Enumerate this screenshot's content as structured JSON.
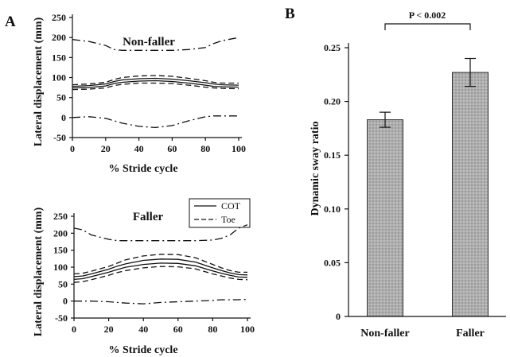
{
  "panel_a_label": "A",
  "panel_b_label": "B",
  "legend": {
    "items": [
      {
        "label": "COT",
        "dash": "solid"
      },
      {
        "label": "Toe",
        "dash": "dashed"
      }
    ]
  },
  "chart_data": [
    {
      "type": "line",
      "title": "Non-faller",
      "xlabel": "% Stride cycle",
      "ylabel": "Lateral displacement (mm)",
      "xlim": [
        0,
        100
      ],
      "ylim": [
        -50,
        250
      ],
      "xticks": [
        0,
        20,
        40,
        60,
        80,
        100
      ],
      "yticks": [
        -50,
        0,
        50,
        100,
        150,
        200,
        250
      ],
      "x": [
        0,
        10,
        20,
        25,
        30,
        40,
        50,
        60,
        70,
        80,
        85,
        90,
        100
      ],
      "series": [
        {
          "style": "dashdot",
          "values": [
            195,
            190,
            180,
            170,
            168,
            168,
            168,
            168,
            170,
            175,
            185,
            192,
            200
          ]
        },
        {
          "style": "dashed",
          "values": [
            82,
            84,
            88,
            95,
            100,
            104,
            105,
            103,
            98,
            92,
            88,
            86,
            86
          ]
        },
        {
          "style": "solid",
          "values": [
            78,
            80,
            84,
            90,
            94,
            97,
            98,
            96,
            92,
            87,
            84,
            82,
            81
          ]
        },
        {
          "style": "solid",
          "values": [
            74,
            75,
            79,
            85,
            88,
            91,
            92,
            90,
            86,
            81,
            78,
            77,
            76
          ]
        },
        {
          "style": "dashed",
          "values": [
            70,
            71,
            74,
            80,
            83,
            86,
            86,
            85,
            81,
            76,
            74,
            73,
            72
          ]
        },
        {
          "style": "dashdot",
          "values": [
            0,
            2,
            -2,
            -8,
            -14,
            -22,
            -25,
            -20,
            -8,
            2,
            4,
            4,
            4
          ]
        }
      ]
    },
    {
      "type": "line",
      "title": "Faller",
      "xlabel": "% Stride cycle",
      "ylabel": "Lateral displacement (mm)",
      "xlim": [
        0,
        100
      ],
      "ylim": [
        -50,
        250
      ],
      "xticks": [
        0,
        20,
        40,
        60,
        80,
        100
      ],
      "yticks": [
        -50,
        0,
        50,
        100,
        150,
        200,
        250
      ],
      "x": [
        0,
        5,
        10,
        20,
        25,
        30,
        40,
        50,
        60,
        70,
        80,
        85,
        90,
        95,
        100
      ],
      "series": [
        {
          "style": "dashdot",
          "values": [
            215,
            210,
            195,
            182,
            178,
            178,
            178,
            178,
            178,
            178,
            180,
            185,
            195,
            215,
            225
          ]
        },
        {
          "style": "dashed",
          "values": [
            80,
            82,
            88,
            102,
            112,
            122,
            133,
            138,
            137,
            128,
            108,
            98,
            90,
            85,
            85
          ]
        },
        {
          "style": "solid",
          "values": [
            72,
            74,
            80,
            94,
            103,
            110,
            120,
            124,
            123,
            115,
            98,
            90,
            83,
            78,
            77
          ]
        },
        {
          "style": "solid",
          "values": [
            64,
            66,
            72,
            85,
            93,
            100,
            108,
            112,
            111,
            104,
            89,
            82,
            76,
            71,
            70
          ]
        },
        {
          "style": "dashed",
          "values": [
            55,
            57,
            63,
            76,
            84,
            90,
            98,
            102,
            101,
            95,
            80,
            74,
            68,
            64,
            63
          ]
        },
        {
          "style": "dashdot",
          "values": [
            0,
            0,
            0,
            -2,
            -4,
            -6,
            -8,
            -4,
            -2,
            0,
            2,
            4,
            4,
            4,
            5
          ]
        }
      ]
    },
    {
      "type": "bar",
      "categories": [
        "Non-faller",
        "Faller"
      ],
      "values": [
        0.183,
        0.227
      ],
      "errors": [
        0.007,
        0.013
      ],
      "ylabel": "Dynamic sway ratio",
      "ylim": [
        0,
        0.25
      ],
      "yticks": [
        "0",
        "0.05",
        "0.10",
        "0.15",
        "0.20",
        "0.25"
      ],
      "ytick_values": [
        0,
        0.05,
        0.1,
        0.15,
        0.2,
        0.25
      ],
      "annotation": "P < 0.002",
      "colors": {
        "bar_fill": "#a8a8a8",
        "bar_edge": "#333333"
      }
    }
  ]
}
